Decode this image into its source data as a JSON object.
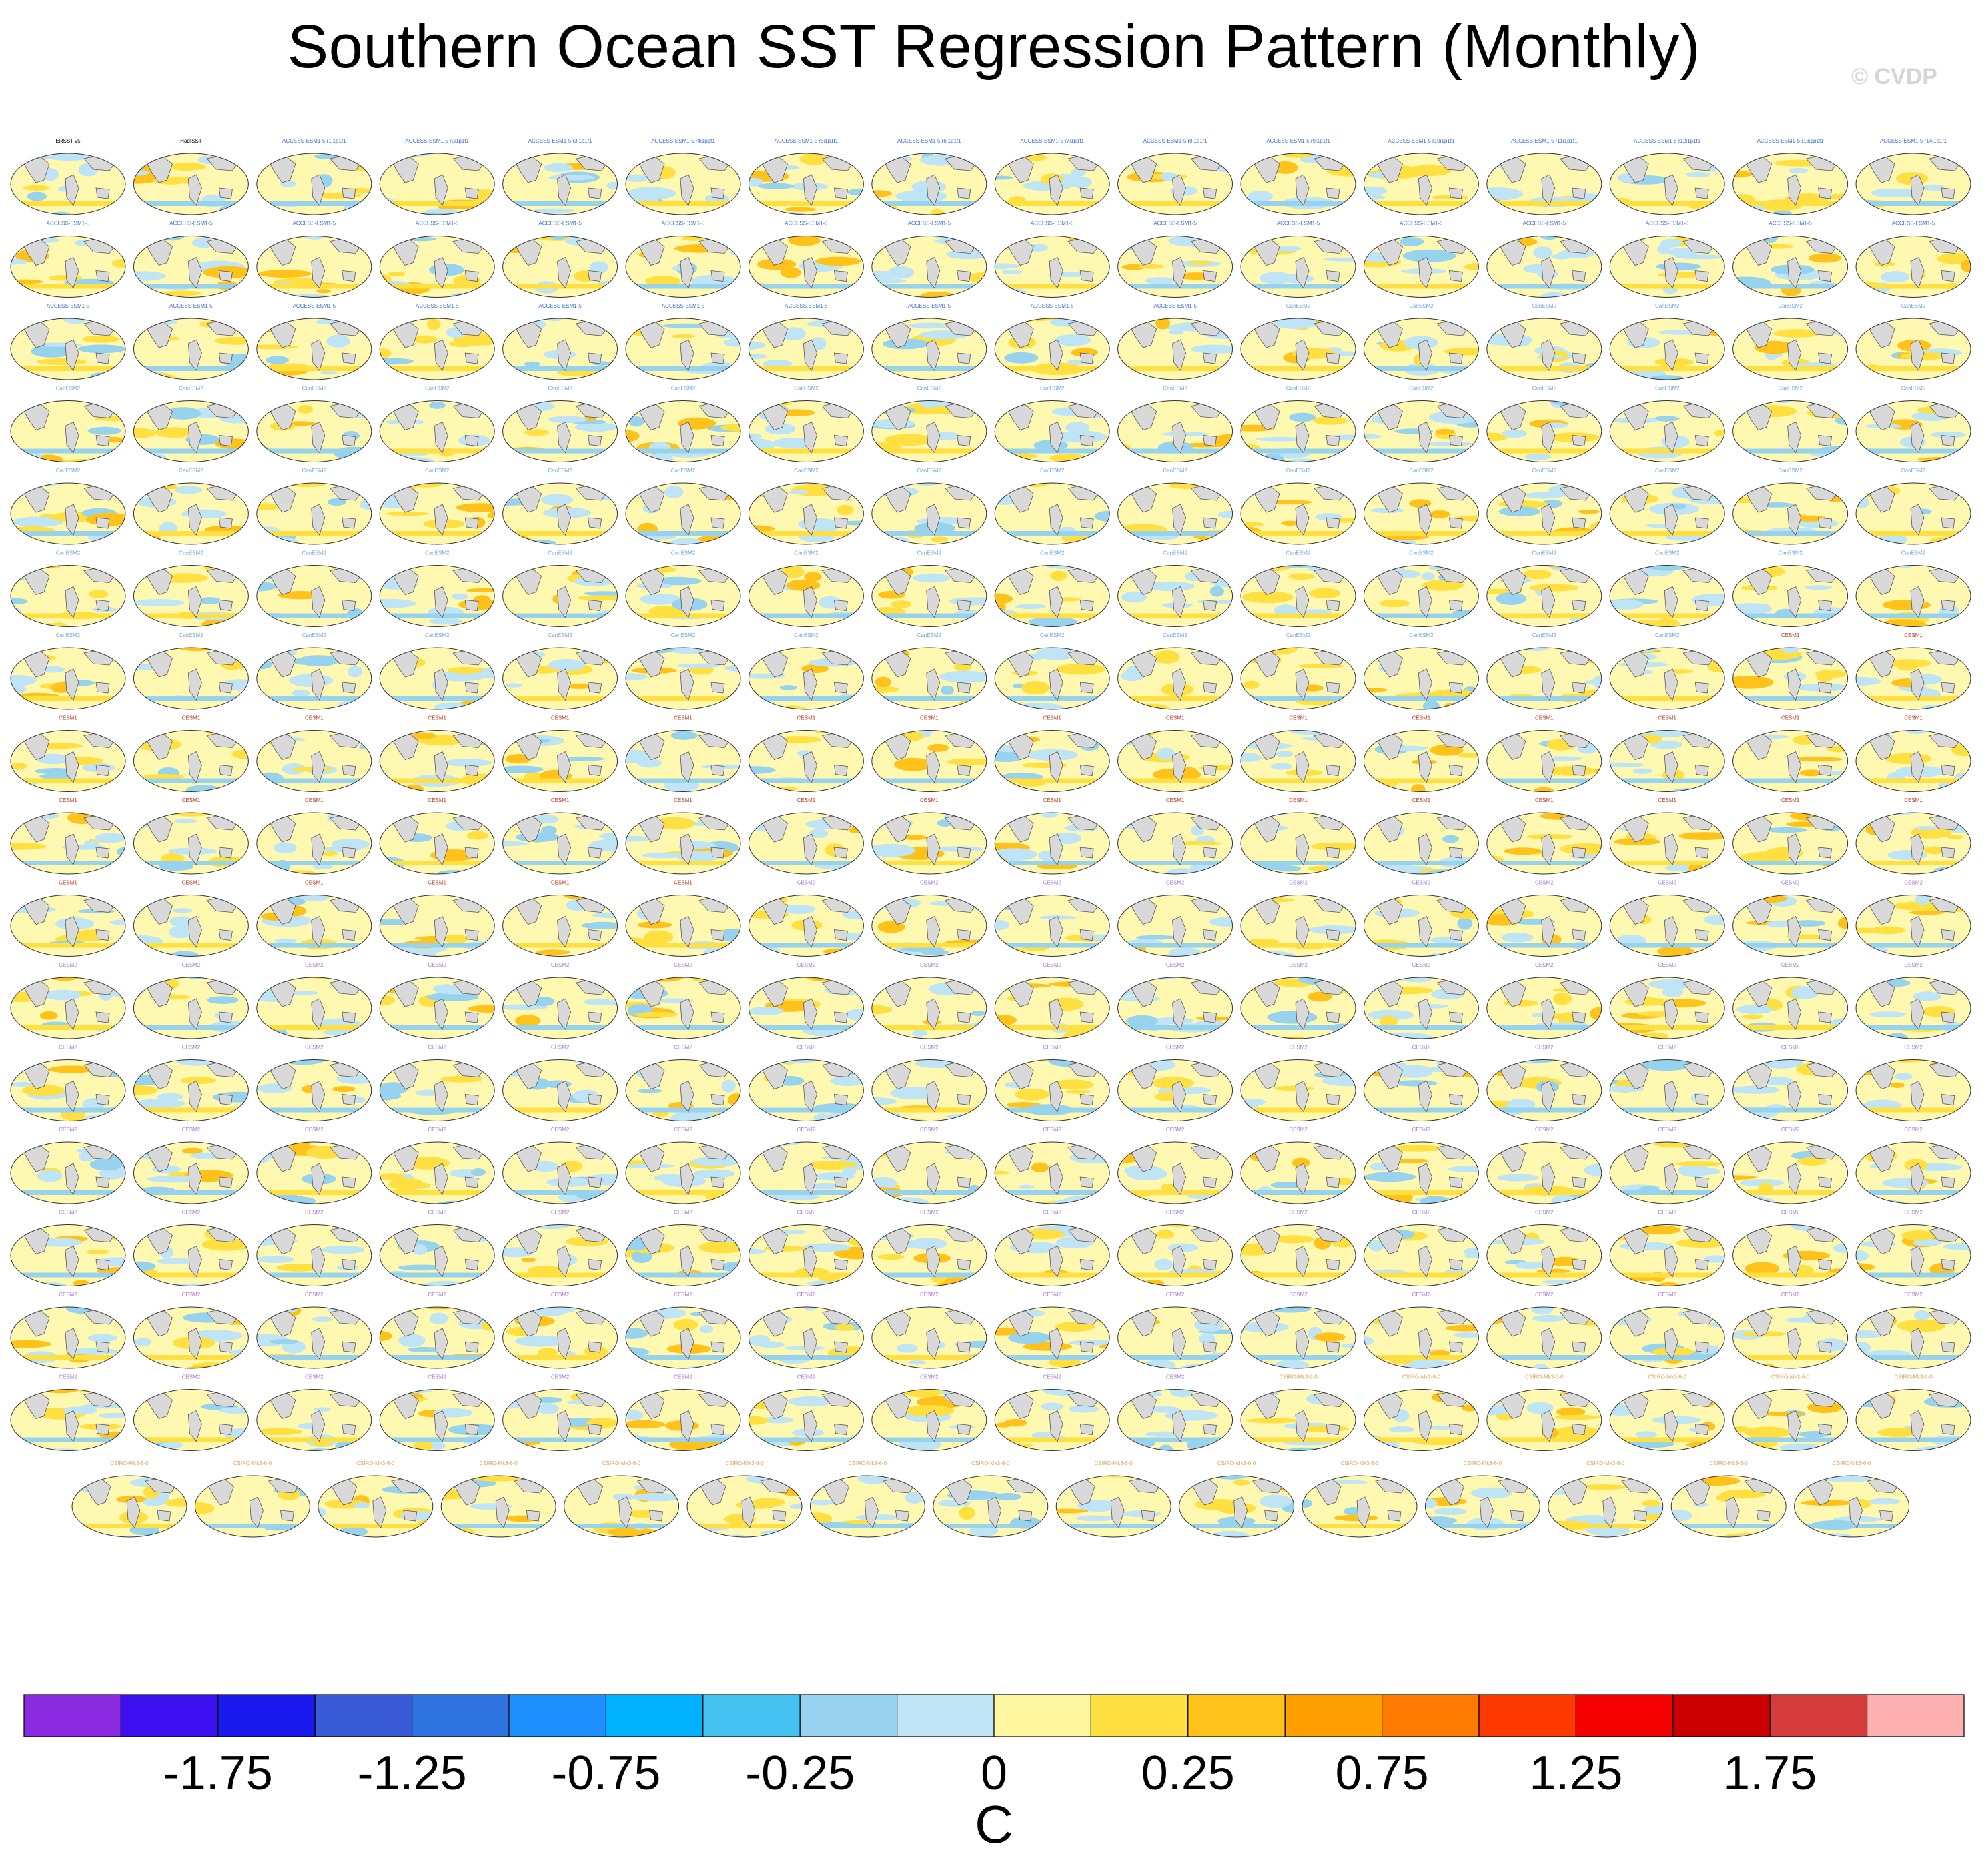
{
  "figure": {
    "title": "Southern Ocean SST Regression Pattern (Monthly)",
    "watermark": "© CVDP"
  },
  "chart_data": {
    "type": "heatmap",
    "title": "Southern Ocean SST Regression Pattern (Monthly)",
    "description_kind": "panel grid of global SST regression maps",
    "rows": 17,
    "columns": 16,
    "last_row_panels": 15,
    "panel_titles_row1": [
      "ERSST v5",
      "HadISST",
      "ACCESS-ESM1-5 r1i1p1f1",
      "ACCESS-ESM1-5 r2i1p1f1",
      "ACCESS-ESM1-5 r3i1p1f1",
      "ACCESS-ESM1-5 r4i1p1f1",
      "ACCESS-ESM1-5 r5i1p1f1",
      "ACCESS-ESM1-5 r6i1p1f1",
      "ACCESS-ESM1-5 r7i1p1f1",
      "ACCESS-ESM1-5 r8i1p1f1",
      "ACCESS-ESM1-5 r9i1p1f1",
      "ACCESS-ESM1-5 r10i1p1f1",
      "ACCESS-ESM1-5 r11i1p1f1",
      "ACCESS-ESM1-5 r12i1p1f1",
      "ACCESS-ESM1-5 r13i1p1f1",
      "ACCESS-ESM1-5 r14i1p1f1"
    ],
    "model_groups": [
      {
        "name": "ACCESS-ESM1-5",
        "color": "#3a6fd8"
      },
      {
        "name": "CanESM2",
        "color": "#6fa8e0"
      },
      {
        "name": "CESM1",
        "color": "#c0392b"
      },
      {
        "name": "CESM2",
        "color": "#a77bd8"
      },
      {
        "name": "CSIRO-Mk3-6-0",
        "color": "#e3a05a"
      }
    ],
    "colorbar": {
      "unit": "C",
      "colors": [
        "#8a2be2",
        "#3b0ff0",
        "#1a1aef",
        "#3a5bd8",
        "#2f74e0",
        "#1e90ff",
        "#00b2ff",
        "#44c2f2",
        "#97d3ee",
        "#bfe4f6",
        "#fff7a0",
        "#ffe040",
        "#ffc21a",
        "#ffa000",
        "#ff7a00",
        "#ff3a00",
        "#f50000",
        "#cc0000",
        "#d63c3c",
        "#ffb0b0"
      ],
      "boundaries": [
        -2.25,
        -2.0,
        -1.75,
        -1.5,
        -1.25,
        -1.0,
        -0.75,
        -0.5,
        -0.25,
        -0.1,
        0,
        0.1,
        0.25,
        0.5,
        0.75,
        1.0,
        1.25,
        1.5,
        1.75,
        2.0,
        2.25
      ],
      "tick_labels": [
        "-1.75",
        "-1.25",
        "-0.75",
        "-0.25",
        "0",
        "0.25",
        "0.75",
        "1.25",
        "1.75"
      ],
      "tick_boundary_index": [
        2,
        4,
        6,
        8,
        10,
        12,
        14,
        16,
        18
      ]
    }
  }
}
